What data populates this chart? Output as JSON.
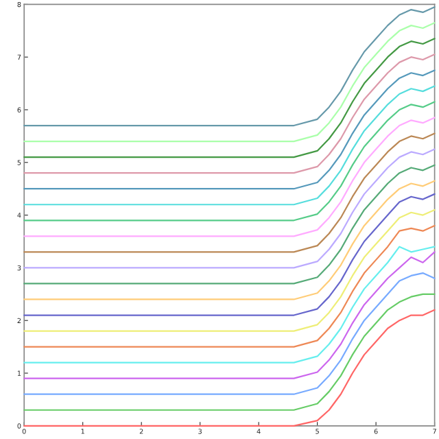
{
  "chart_data": {
    "type": "line",
    "x": [
      0,
      4.6,
      5.0,
      5.2,
      5.4,
      5.6,
      5.8,
      6.0,
      6.2,
      6.4,
      6.6,
      6.8,
      7.0
    ],
    "xlim": [
      0,
      7
    ],
    "xticks": [
      0,
      1,
      2,
      3,
      4,
      5,
      6,
      7
    ],
    "ylim": [
      0,
      8
    ],
    "yticks": [
      0,
      1,
      2,
      3,
      4,
      5,
      6,
      7,
      8
    ],
    "grid": false,
    "series": [
      {
        "color": "#ff6666",
        "values": [
          0,
          0,
          0.1,
          0.3,
          0.6,
          1.0,
          1.35,
          1.6,
          1.85,
          2.0,
          2.1,
          2.1,
          2.2
        ]
      },
      {
        "color": "#66cc66",
        "values": [
          0.3,
          0.3,
          0.42,
          0.65,
          0.95,
          1.35,
          1.7,
          1.95,
          2.2,
          2.35,
          2.45,
          2.5,
          2.5
        ]
      },
      {
        "color": "#77aaff",
        "values": [
          0.6,
          0.6,
          0.72,
          0.95,
          1.25,
          1.65,
          2.0,
          2.25,
          2.5,
          2.75,
          2.85,
          2.9,
          2.8
        ]
      },
      {
        "color": "#cc66ee",
        "values": [
          0.9,
          0.9,
          1.02,
          1.25,
          1.55,
          1.95,
          2.3,
          2.55,
          2.8,
          3.0,
          3.2,
          3.1,
          3.3
        ]
      },
      {
        "color": "#66eeee",
        "values": [
          1.2,
          1.2,
          1.32,
          1.55,
          1.85,
          2.25,
          2.6,
          2.85,
          3.1,
          3.4,
          3.3,
          3.35,
          3.4
        ]
      },
      {
        "color": "#ee8855",
        "values": [
          1.5,
          1.5,
          1.62,
          1.85,
          2.15,
          2.55,
          2.9,
          3.15,
          3.4,
          3.7,
          3.75,
          3.7,
          3.8
        ]
      },
      {
        "color": "#eeee77",
        "values": [
          1.8,
          1.8,
          1.92,
          2.15,
          2.45,
          2.85,
          3.2,
          3.45,
          3.7,
          3.95,
          4.05,
          4.0,
          4.1
        ]
      },
      {
        "color": "#6666cc",
        "values": [
          2.1,
          2.1,
          2.22,
          2.45,
          2.75,
          3.15,
          3.5,
          3.75,
          4.0,
          4.25,
          4.35,
          4.3,
          4.4
        ]
      },
      {
        "color": "#ffcc77",
        "values": [
          2.4,
          2.4,
          2.52,
          2.75,
          3.05,
          3.45,
          3.8,
          4.05,
          4.3,
          4.5,
          4.6,
          4.55,
          4.65
        ]
      },
      {
        "color": "#55aa77",
        "values": [
          2.7,
          2.7,
          2.82,
          3.05,
          3.35,
          3.75,
          4.1,
          4.35,
          4.6,
          4.8,
          4.9,
          4.85,
          4.95
        ]
      },
      {
        "color": "#bbaaff",
        "values": [
          3.0,
          3.0,
          3.12,
          3.35,
          3.65,
          4.05,
          4.4,
          4.65,
          4.9,
          5.1,
          5.2,
          5.15,
          5.25
        ]
      },
      {
        "color": "#bb8855",
        "values": [
          3.3,
          3.3,
          3.42,
          3.65,
          3.95,
          4.35,
          4.7,
          4.95,
          5.2,
          5.4,
          5.5,
          5.45,
          5.55
        ]
      },
      {
        "color": "#ffaaff",
        "values": [
          3.6,
          3.6,
          3.72,
          3.95,
          4.25,
          4.65,
          5.0,
          5.25,
          5.5,
          5.7,
          5.8,
          5.75,
          5.85
        ]
      },
      {
        "color": "#55cc88",
        "values": [
          3.9,
          3.9,
          4.02,
          4.25,
          4.55,
          4.95,
          5.3,
          5.55,
          5.8,
          6.0,
          6.1,
          6.05,
          6.15
        ]
      },
      {
        "color": "#55dddd",
        "values": [
          4.2,
          4.2,
          4.32,
          4.55,
          4.85,
          5.25,
          5.6,
          5.85,
          6.1,
          6.3,
          6.4,
          6.35,
          6.45
        ]
      },
      {
        "color": "#5599bb",
        "values": [
          4.5,
          4.5,
          4.62,
          4.85,
          5.15,
          5.55,
          5.9,
          6.15,
          6.4,
          6.6,
          6.7,
          6.65,
          6.75
        ]
      },
      {
        "color": "#dd99aa",
        "values": [
          4.8,
          4.8,
          4.92,
          5.15,
          5.45,
          5.85,
          6.2,
          6.45,
          6.7,
          6.9,
          7.0,
          6.95,
          7.05
        ]
      },
      {
        "color": "#449944",
        "values": [
          5.1,
          5.1,
          5.22,
          5.45,
          5.75,
          6.15,
          6.5,
          6.75,
          7.0,
          7.2,
          7.3,
          7.25,
          7.35
        ]
      },
      {
        "color": "#aaffaa",
        "values": [
          5.4,
          5.4,
          5.52,
          5.75,
          6.05,
          6.45,
          6.8,
          7.05,
          7.3,
          7.5,
          7.6,
          7.55,
          7.65
        ]
      },
      {
        "color": "#6699aa",
        "values": [
          5.7,
          5.7,
          5.82,
          6.05,
          6.35,
          6.75,
          7.1,
          7.35,
          7.6,
          7.8,
          7.9,
          7.85,
          7.95
        ]
      }
    ]
  }
}
